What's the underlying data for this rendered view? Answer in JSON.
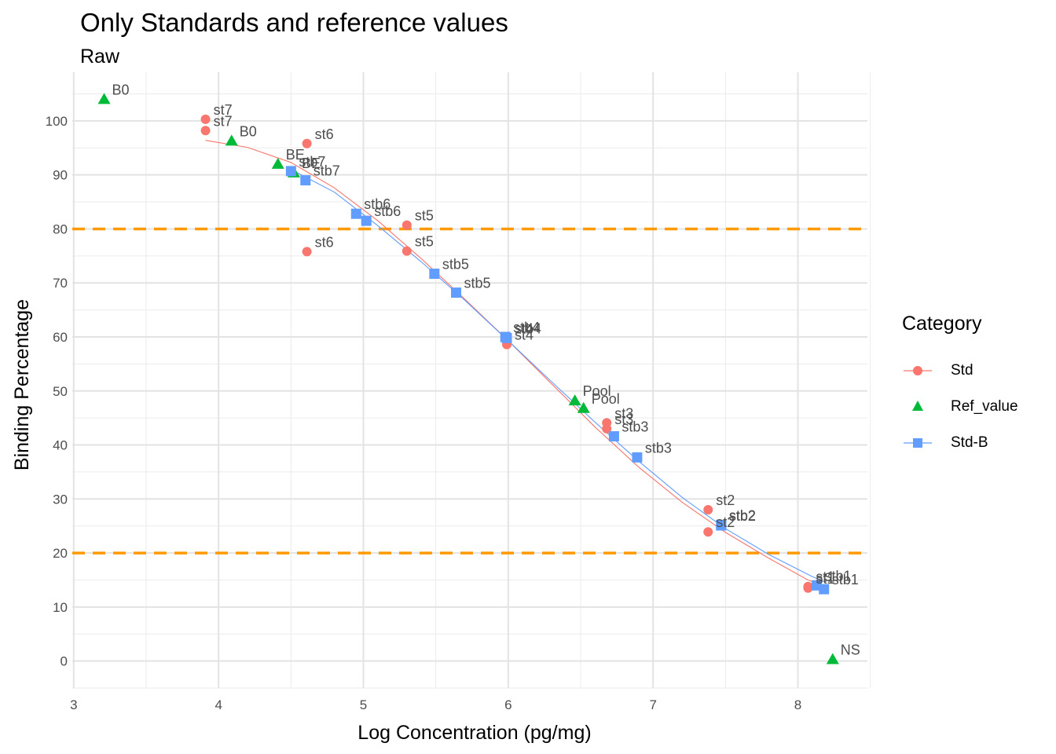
{
  "chart_data": {
    "type": "scatter",
    "title": "Only Standards and reference values",
    "subtitle": "Raw",
    "xlabel": "Log Concentration (pg/mg)",
    "ylabel": "Binding Percentage",
    "xlim": [
      2.99,
      8.48
    ],
    "ylim": [
      -5,
      109
    ],
    "xticks": [
      3,
      4,
      5,
      6,
      7,
      8
    ],
    "yticks": [
      0,
      10,
      20,
      30,
      40,
      50,
      60,
      70,
      80,
      90,
      100
    ],
    "grid": true,
    "legend_title": "Category",
    "legend_position": "right",
    "hlines": [
      {
        "y": 80,
        "color": "#FF9900",
        "style": "dashed"
      },
      {
        "y": 20,
        "color": "#FF9900",
        "style": "dashed"
      }
    ],
    "series": [
      {
        "name": "Std",
        "color": "#F8766D",
        "shape": "circle",
        "points": [
          {
            "x": 3.91,
            "y": 100.3,
            "label": "st7"
          },
          {
            "x": 3.91,
            "y": 98.2,
            "label": "st7"
          },
          {
            "x": 4.61,
            "y": 95.8,
            "label": "st6"
          },
          {
            "x": 4.61,
            "y": 75.8,
            "label": "st6"
          },
          {
            "x": 5.3,
            "y": 80.7,
            "label": "st5"
          },
          {
            "x": 5.3,
            "y": 75.9,
            "label": "st5"
          },
          {
            "x": 5.99,
            "y": 59.8,
            "label": "st4"
          },
          {
            "x": 5.99,
            "y": 58.6,
            "label": "st4"
          },
          {
            "x": 6.68,
            "y": 44.1,
            "label": "st3"
          },
          {
            "x": 6.68,
            "y": 43.0,
            "label": "st3"
          },
          {
            "x": 7.38,
            "y": 28.0,
            "label": "st2"
          },
          {
            "x": 7.38,
            "y": 23.9,
            "label": "st2"
          },
          {
            "x": 8.07,
            "y": 13.8,
            "label": "st1"
          },
          {
            "x": 8.07,
            "y": 13.5,
            "label": "st1"
          }
        ],
        "curve": [
          [
            3.91,
            96.4
          ],
          [
            4.2,
            95.1
          ],
          [
            4.5,
            92.3
          ],
          [
            4.8,
            87.6
          ],
          [
            5.1,
            81.5
          ],
          [
            5.4,
            74.5
          ],
          [
            5.7,
            67.0
          ],
          [
            6.0,
            59.3
          ],
          [
            6.3,
            51.3
          ],
          [
            6.6,
            43.3
          ],
          [
            6.9,
            35.9
          ],
          [
            7.2,
            29.4
          ],
          [
            7.5,
            23.8
          ],
          [
            7.8,
            19.0
          ],
          [
            8.07,
            15.0
          ],
          [
            8.19,
            13.8
          ]
        ]
      },
      {
        "name": "Ref_value",
        "color": "#00BA38",
        "shape": "triangle",
        "points": [
          {
            "x": 3.21,
            "y": 104.0,
            "label": "B0"
          },
          {
            "x": 4.09,
            "y": 96.3,
            "label": "B0"
          },
          {
            "x": 4.41,
            "y": 92.0,
            "label": "BE"
          },
          {
            "x": 4.52,
            "y": 90.4,
            "label": "BE"
          },
          {
            "x": 6.46,
            "y": 48.2,
            "label": "Pool"
          },
          {
            "x": 6.52,
            "y": 46.8,
            "label": "Pool"
          },
          {
            "x": 8.24,
            "y": 0.3,
            "label": "NS"
          }
        ]
      },
      {
        "name": "Std-B",
        "color": "#619CFF",
        "shape": "square",
        "points": [
          {
            "x": 4.5,
            "y": 90.7,
            "label": "stb7"
          },
          {
            "x": 4.6,
            "y": 89.0,
            "label": "stb7"
          },
          {
            "x": 4.95,
            "y": 82.8,
            "label": "stb6"
          },
          {
            "x": 5.02,
            "y": 81.5,
            "label": "stb6"
          },
          {
            "x": 5.49,
            "y": 71.7,
            "label": "stb5"
          },
          {
            "x": 5.64,
            "y": 68.2,
            "label": "stb5"
          },
          {
            "x": 5.98,
            "y": 60.0,
            "label": "stb4"
          },
          {
            "x": 5.99,
            "y": 59.8,
            "label": "stb4"
          },
          {
            "x": 6.73,
            "y": 41.6,
            "label": "stb3"
          },
          {
            "x": 6.89,
            "y": 37.7,
            "label": "stb3"
          },
          {
            "x": 7.47,
            "y": 25.2,
            "label": "stb2"
          },
          {
            "x": 7.47,
            "y": 25.1,
            "label": "stb2"
          },
          {
            "x": 8.13,
            "y": 14.0,
            "label": "stb1"
          },
          {
            "x": 8.18,
            "y": 13.3,
            "label": "stb1"
          }
        ],
        "curve": [
          [
            4.5,
            91.0
          ],
          [
            4.8,
            86.8
          ],
          [
            5.1,
            80.6
          ],
          [
            5.4,
            73.9
          ],
          [
            5.7,
            66.8
          ],
          [
            6.0,
            59.3
          ],
          [
            6.3,
            51.7
          ],
          [
            6.6,
            44.2
          ],
          [
            6.9,
            37.0
          ],
          [
            7.2,
            30.3
          ],
          [
            7.5,
            24.5
          ],
          [
            7.8,
            19.7
          ],
          [
            8.1,
            15.6
          ],
          [
            8.19,
            14.6
          ]
        ]
      }
    ]
  }
}
